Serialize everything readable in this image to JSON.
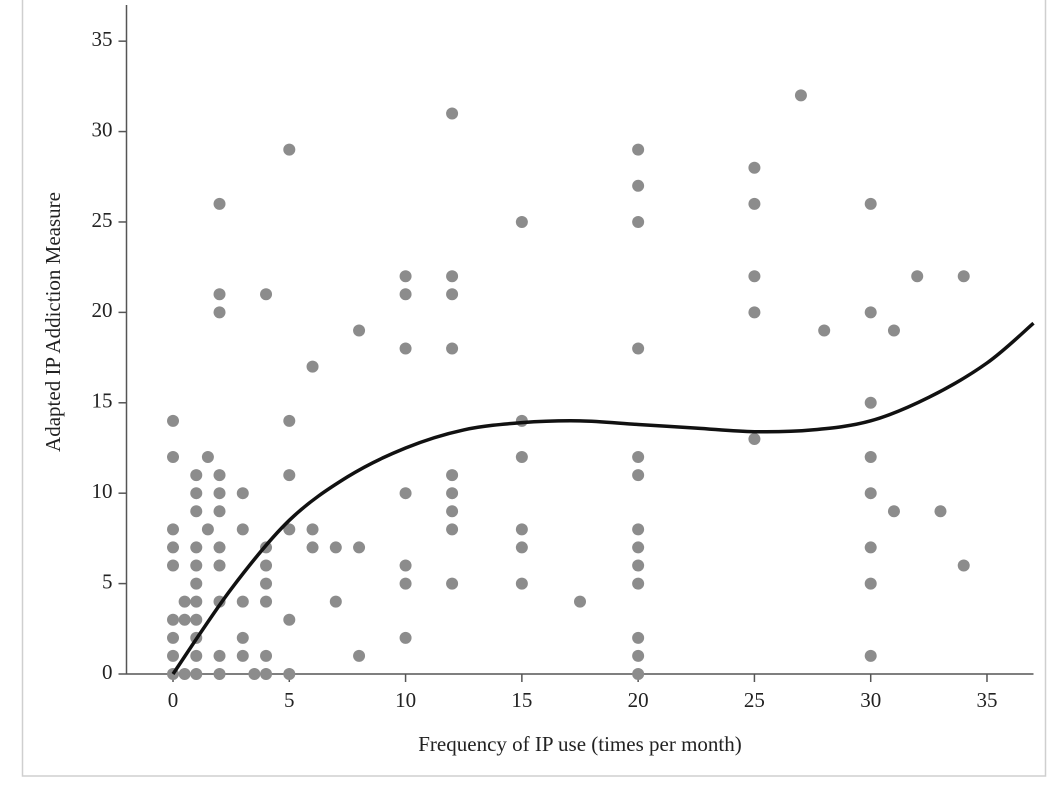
{
  "chart_data": {
    "type": "scatter",
    "x_label": "Frequency of IP use (times per month)",
    "y_label": "Adapted IP Addiction Measure",
    "xlim": [
      -2,
      37
    ],
    "ylim": [
      0,
      37
    ],
    "xticks": [
      0,
      5,
      10,
      15,
      20,
      25,
      30,
      35
    ],
    "yticks": [
      0,
      5,
      10,
      15,
      20,
      25,
      30,
      35
    ],
    "series": [
      {
        "type": "scatter",
        "color": "#8c8c8c",
        "x": [
          0,
          0,
          0,
          0,
          0,
          0,
          0,
          0,
          0,
          0.5,
          0.5,
          0.5,
          1,
          1,
          1,
          1,
          1,
          1,
          1,
          1,
          1,
          1,
          1,
          1.5,
          1.5,
          2,
          2,
          2,
          2,
          2,
          2,
          2,
          2,
          2,
          2,
          2,
          3,
          3,
          3,
          3,
          3,
          3.5,
          4,
          4,
          4,
          4,
          4,
          4,
          4,
          5,
          5,
          5,
          5,
          5,
          5,
          6,
          6,
          6,
          7,
          7,
          8,
          8,
          8,
          10,
          10,
          10,
          10,
          10,
          10,
          10,
          12,
          12,
          12,
          12,
          12,
          12,
          12,
          12,
          12,
          15,
          15,
          15,
          15,
          15,
          15,
          17.5,
          20,
          20,
          20,
          20,
          20,
          20,
          20,
          20,
          20,
          20,
          20,
          20,
          20,
          25,
          25,
          25,
          25,
          25,
          27,
          28,
          30,
          30,
          30,
          30,
          30,
          30,
          30,
          30,
          31,
          31,
          32,
          33,
          34,
          34
        ],
        "values": [
          14,
          12,
          8,
          7,
          6,
          3,
          2,
          1,
          0,
          4,
          3,
          0,
          11,
          10,
          9,
          7,
          6,
          5,
          4,
          3,
          2,
          1,
          0,
          12,
          8,
          26,
          21,
          20,
          11,
          10,
          9,
          7,
          6,
          4,
          1,
          0,
          10,
          8,
          4,
          2,
          1,
          0,
          21,
          7,
          6,
          5,
          4,
          1,
          0,
          29,
          14,
          11,
          8,
          3,
          0,
          17,
          8,
          7,
          7,
          4,
          19,
          7,
          1,
          22,
          21,
          18,
          10,
          6,
          5,
          2,
          31,
          22,
          21,
          18,
          11,
          10,
          9,
          8,
          5,
          25,
          14,
          12,
          8,
          7,
          5,
          4,
          29,
          27,
          25,
          18,
          12,
          11,
          8,
          7,
          6,
          5,
          2,
          1,
          0,
          28,
          26,
          22,
          20,
          13,
          32,
          19,
          26,
          20,
          15,
          12,
          10,
          7,
          5,
          1,
          19,
          9,
          22,
          9,
          22,
          6
        ]
      },
      {
        "type": "line",
        "color": "#111111",
        "x": [
          0,
          2.5,
          5,
          7.5,
          10,
          12.5,
          15,
          17.5,
          20,
          22.5,
          25,
          27.5,
          30,
          32.5,
          35,
          37
        ],
        "values": [
          0,
          4.7,
          8.5,
          10.9,
          12.5,
          13.5,
          13.9,
          14.0,
          13.8,
          13.6,
          13.4,
          13.5,
          14.0,
          15.3,
          17.2,
          19.4
        ]
      }
    ]
  }
}
